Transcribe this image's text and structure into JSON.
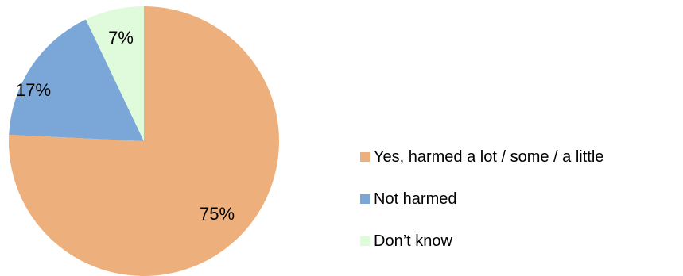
{
  "chart_data": {
    "type": "pie",
    "series": [
      {
        "categories": [
          "Yes, harmed a lot / some / a little",
          "Not harmed",
          "Don’t know"
        ],
        "values": [
          75,
          17,
          7
        ],
        "labels": [
          "75%",
          "17%",
          "7%"
        ],
        "colors": [
          "#EDB07C",
          "#7BA7D8",
          "#DFFBDB"
        ]
      }
    ],
    "legend": {
      "placement": "right",
      "entries": [
        "Yes, harmed a lot / some / a little",
        "Not harmed",
        "Don’t know"
      ]
    }
  }
}
